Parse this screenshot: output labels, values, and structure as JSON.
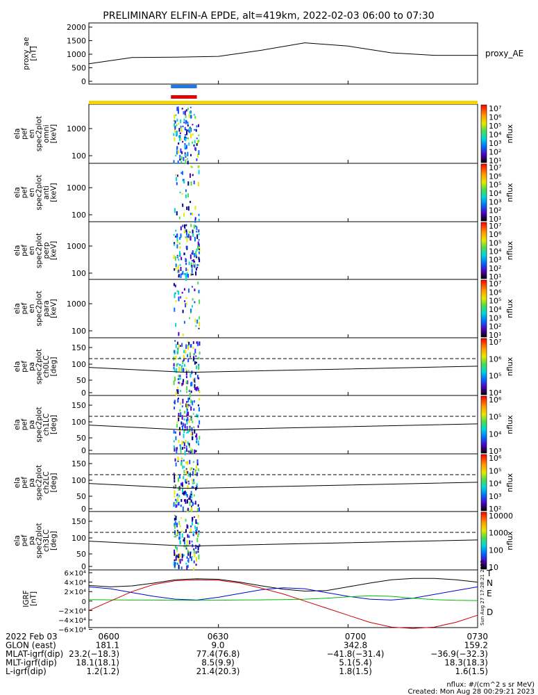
{
  "title": "PRELIMINARY ELFIN-A EPDE, alt=419km, 2022-02-03 06:00 to 07:30",
  "colors": {
    "blue_bar": "#1f78e6",
    "red_bar": "#e00000",
    "yellow_bar": "#f2d400",
    "n": "#0000cc",
    "e": "#00bb00",
    "d": "#cc0000"
  },
  "panels": [
    {
      "key": "ae",
      "ylabel": [
        "proxy_ae",
        "[nT]"
      ],
      "yticks": [
        "2000",
        "1500",
        "1000",
        "500",
        "0"
      ],
      "right_label": "proxy_AE"
    },
    {
      "key": "omni",
      "ylabel": [
        "ela",
        "pef",
        "en",
        "spec2plot",
        "omni",
        "[keV]"
      ],
      "yticks": [
        "1000",
        "100"
      ],
      "cbar_ticks": [
        "10⁷",
        "10⁶",
        "10⁵",
        "10⁴",
        "10³",
        "10²",
        "10¹"
      ],
      "cbar_label": "nflux"
    },
    {
      "key": "anti",
      "ylabel": [
        "ela",
        "pef",
        "en",
        "spec2plot",
        "anti",
        "[keV]"
      ],
      "yticks": [
        "1000",
        "100"
      ],
      "cbar_ticks": [
        "10⁷",
        "10⁶",
        "10⁵",
        "10⁴",
        "10³",
        "10²",
        "10¹"
      ],
      "cbar_label": "nflux"
    },
    {
      "key": "perp",
      "ylabel": [
        "ela",
        "pef",
        "en",
        "spec2plot",
        "perp",
        "[keV]"
      ],
      "yticks": [
        "1000",
        "100"
      ],
      "cbar_ticks": [
        "10⁷",
        "10⁶",
        "10⁵",
        "10⁴",
        "10³",
        "10²",
        "10¹"
      ],
      "cbar_label": "nflux"
    },
    {
      "key": "para",
      "ylabel": [
        "ela",
        "pef",
        "en",
        "spec2plot",
        "para",
        "[keV]"
      ],
      "yticks": [
        "1000",
        "100"
      ],
      "cbar_ticks": [
        "10⁷",
        "10⁶",
        "10⁵",
        "10⁴",
        "10³",
        "10²",
        "10¹"
      ],
      "cbar_label": "nflux"
    },
    {
      "key": "ch0",
      "ylabel": [
        "ela",
        "pef",
        "pa",
        "spec2plot",
        "ch0LC",
        "[deg]"
      ],
      "yticks": [
        "150",
        "100",
        "50",
        "0"
      ],
      "cbar_ticks": [
        "10⁷",
        "10⁶",
        "10⁵",
        "10⁴"
      ],
      "cbar_label": "nflux"
    },
    {
      "key": "ch1",
      "ylabel": [
        "ela",
        "pef",
        "pa",
        "spec2plot",
        "ch1LC",
        "[deg]"
      ],
      "yticks": [
        "150",
        "100",
        "50",
        "0"
      ],
      "cbar_ticks": [
        "10⁶",
        "10⁵",
        "10⁴",
        "10³"
      ],
      "cbar_label": "nflux"
    },
    {
      "key": "ch2",
      "ylabel": [
        "ela",
        "pef",
        "pa",
        "spec2plot",
        "ch2LC",
        "[deg]"
      ],
      "yticks": [
        "150",
        "100",
        "50",
        "0"
      ],
      "cbar_ticks": [
        "10⁶",
        "10⁵",
        "10⁴",
        "10³",
        "10²"
      ],
      "cbar_label": "nflux"
    },
    {
      "key": "ch3",
      "ylabel": [
        "ela",
        "pef",
        "pa",
        "spec2plot",
        "ch3LC",
        "[deg]"
      ],
      "yticks": [
        "150",
        "100",
        "50",
        "0"
      ],
      "cbar_ticks": [
        "10000",
        "1000",
        "100",
        "10"
      ],
      "cbar_label": "nflux"
    },
    {
      "key": "igrf",
      "ylabel": [
        "IGRF",
        "[nT]"
      ],
      "yticks": [
        "6×10⁴",
        "4×10⁴",
        "2×10⁴",
        "0",
        "−2×10⁴",
        "−4×10⁴",
        "−6×10⁴"
      ],
      "legend": [
        "T",
        "N",
        "E",
        "D"
      ]
    }
  ],
  "footer": {
    "rows": [
      [
        "2022 Feb 03",
        "0600",
        "0630",
        "0700",
        "0730"
      ],
      [
        "GLON (east)",
        "181.1",
        "9.0",
        "342.8",
        "159.2"
      ],
      [
        "MLAT-igrf(dip)",
        "23.2(−18.3)",
        "77.4(76.8)",
        "−41.8(−31.4)",
        "−36.9(−32.3)"
      ],
      [
        "MLT-igrf(dip)",
        "18.1(18.1)",
        "8.5(9.9)",
        "5.1(5.4)",
        "18.3(18.3)"
      ],
      [
        "L-igrf(dip)",
        "1.2(1.2)",
        "21.4(20.3)",
        "1.8(1.5)",
        "1.6(1.5)"
      ]
    ],
    "units": "nflux: #/(cm^2 s sr MeV)",
    "created": "Created: Mon Aug 28 00:29:21 2023",
    "stamp": "Sun Aug 27 17:28:21 2023"
  },
  "chart_data": {
    "type": "line",
    "x_range": [
      "06:00",
      "07:30"
    ],
    "x_ticks": [
      "0600",
      "0630",
      "0700",
      "0730"
    ],
    "series": [
      {
        "name": "proxy_AE",
        "x_min": [
          0,
          10,
          20,
          30,
          40,
          50,
          60,
          70,
          80,
          90
        ],
        "values": [
          650,
          880,
          890,
          920,
          1150,
          1420,
          1300,
          1050,
          960,
          960
        ],
        "ylim": [
          0,
          2000
        ]
      }
    ],
    "igrf": {
      "ylim": [
        -60000,
        60000
      ],
      "x_min": [
        0,
        5,
        10,
        15,
        20,
        25,
        30,
        35,
        40,
        45,
        50,
        55,
        60,
        65,
        70,
        75,
        80,
        85,
        90
      ],
      "T": [
        33000,
        30000,
        32000,
        38000,
        45000,
        47000,
        46000,
        40000,
        32000,
        25000,
        21000,
        22000,
        30000,
        38000,
        45000,
        48000,
        48000,
        45000,
        40000
      ],
      "N": [
        30000,
        26000,
        18000,
        10000,
        4000,
        2000,
        8000,
        16000,
        24000,
        28000,
        26000,
        18000,
        10000,
        4000,
        2000,
        6000,
        14000,
        22000,
        30000
      ],
      "E": [
        3000,
        2500,
        2000,
        2000,
        1500,
        1500,
        1800,
        2200,
        2500,
        3000,
        4000,
        6000,
        9000,
        11000,
        10000,
        6000,
        3000,
        1500,
        1000
      ],
      "D": [
        -20000,
        0,
        20000,
        35000,
        43000,
        45000,
        44000,
        38000,
        27000,
        15000,
        0,
        -15000,
        -30000,
        -45000,
        -55000,
        -58000,
        -55000,
        -45000,
        -30000
      ]
    },
    "pa_lines": {
      "dashed": 113,
      "solid_x_min": [
        0,
        22,
        25,
        90
      ],
      "solid": [
        84,
        68,
        68,
        88
      ]
    },
    "bars": {
      "blue_min": [
        19,
        25
      ],
      "red_min": [
        19,
        25
      ],
      "yellow_min": [
        0,
        90
      ]
    },
    "spectrogram_time_min": [
      19.5,
      25.5
    ]
  }
}
